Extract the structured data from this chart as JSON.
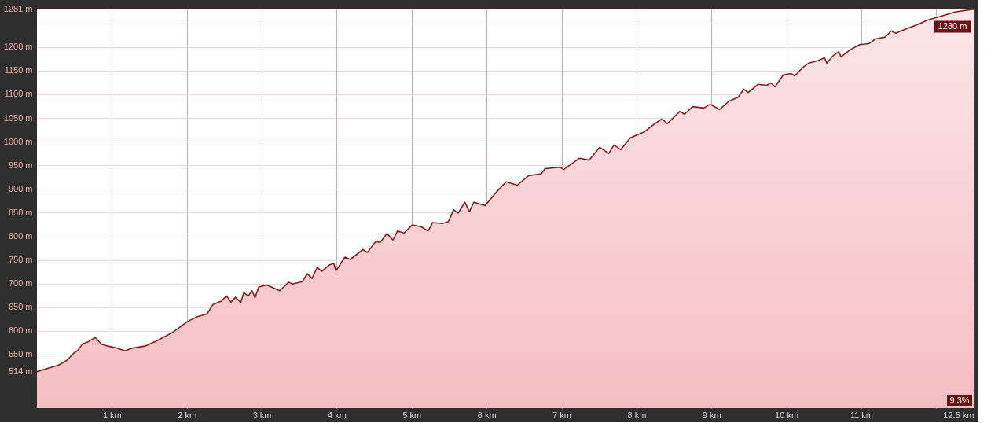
{
  "chart_data": {
    "type": "area",
    "grid": true,
    "x": [
      0.0,
      0.29,
      0.4,
      0.49,
      0.54,
      0.61,
      0.67,
      0.78,
      0.86,
      0.95,
      1.06,
      1.18,
      1.25,
      1.44,
      1.61,
      1.82,
      2.01,
      2.14,
      2.27,
      2.35,
      2.46,
      2.53,
      2.59,
      2.65,
      2.72,
      2.76,
      2.82,
      2.87,
      2.91,
      2.96,
      3.01,
      3.07,
      3.24,
      3.36,
      3.41,
      3.54,
      3.61,
      3.67,
      3.74,
      3.8,
      3.9,
      3.96,
      3.99,
      4.11,
      4.18,
      4.35,
      4.41,
      4.52,
      4.58,
      4.67,
      4.75,
      4.81,
      4.9,
      5.01,
      5.13,
      5.22,
      5.28,
      5.41,
      5.49,
      5.56,
      5.62,
      5.71,
      5.77,
      5.83,
      5.98,
      6.14,
      6.26,
      6.41,
      6.56,
      6.73,
      6.78,
      6.98,
      7.03,
      7.24,
      7.37,
      7.51,
      7.63,
      7.7,
      7.79,
      7.92,
      8.11,
      8.22,
      8.34,
      8.41,
      8.58,
      8.64,
      8.75,
      8.9,
      8.98,
      9.11,
      9.23,
      9.36,
      9.43,
      9.49,
      9.62,
      9.74,
      9.79,
      9.85,
      9.96,
      10.06,
      10.11,
      10.23,
      10.3,
      10.42,
      10.51,
      10.54,
      10.62,
      10.7,
      10.73,
      10.85,
      10.98,
      11.1,
      11.19,
      11.32,
      11.4,
      11.46,
      11.61,
      11.78,
      11.87,
      12.04,
      12.25,
      12.5
    ],
    "series": [
      {
        "color": "#8b1a1a",
        "values": [
          514,
          528,
          538,
          553,
          558,
          573,
          576,
          586,
          572,
          568,
          564,
          558,
          563,
          568,
          580,
          598,
          620,
          630,
          636,
          656,
          663,
          674,
          661,
          671,
          660,
          681,
          674,
          685,
          670,
          693,
          695,
          697,
          685,
          703,
          699,
          704,
          721,
          711,
          734,
          726,
          739,
          743,
          727,
          756,
          751,
          772,
          766,
          789,
          787,
          806,
          792,
          811,
          807,
          824,
          820,
          811,
          829,
          827,
          831,
          856,
          849,
          872,
          852,
          872,
          865,
          895,
          915,
          908,
          928,
          932,
          943,
          946,
          941,
          965,
          961,
          988,
          975,
          993,
          983,
          1008,
          1021,
          1035,
          1048,
          1038,
          1064,
          1058,
          1074,
          1071,
          1079,
          1068,
          1085,
          1094,
          1111,
          1104,
          1121,
          1119,
          1124,
          1116,
          1141,
          1144,
          1139,
          1158,
          1166,
          1171,
          1177,
          1166,
          1181,
          1190,
          1179,
          1194,
          1205,
          1207,
          1217,
          1221,
          1234,
          1229,
          1239,
          1249,
          1256,
          1264,
          1274,
          1280
        ]
      }
    ],
    "xlim": [
      0,
      12.5
    ],
    "xticks": [
      {
        "value": 1,
        "label": "1 km"
      },
      {
        "value": 2,
        "label": "2 km"
      },
      {
        "value": 3,
        "label": "3 km"
      },
      {
        "value": 4,
        "label": "4 km"
      },
      {
        "value": 5,
        "label": "5 km"
      },
      {
        "value": 6,
        "label": "6 km"
      },
      {
        "value": 7,
        "label": "7 km"
      },
      {
        "value": 8,
        "label": "8 km"
      },
      {
        "value": 9,
        "label": "9 km"
      },
      {
        "value": 10,
        "label": "10 km"
      },
      {
        "value": 11,
        "label": "11 km"
      },
      {
        "value": 12,
        "label": null
      },
      {
        "value": 12.5,
        "label": "12.5 km"
      }
    ],
    "ylim": [
      437,
      1281
    ],
    "yticks": [
      {
        "value": 514,
        "label": "514 m"
      },
      {
        "value": 550,
        "label": "550 m"
      },
      {
        "value": 600,
        "label": "600 m"
      },
      {
        "value": 650,
        "label": "650 m"
      },
      {
        "value": 700,
        "label": "700 m"
      },
      {
        "value": 750,
        "label": "750 m"
      },
      {
        "value": 800,
        "label": "800 m"
      },
      {
        "value": 850,
        "label": "850 m"
      },
      {
        "value": 900,
        "label": "900 m"
      },
      {
        "value": 950,
        "label": "950 m"
      },
      {
        "value": 1000,
        "label": "1000 m"
      },
      {
        "value": 1050,
        "label": "1050 m"
      },
      {
        "value": 1100,
        "label": "1100 m"
      },
      {
        "value": 1150,
        "label": "1150 m"
      },
      {
        "value": 1200,
        "label": "1200 m"
      },
      {
        "value": 1250,
        "label": null
      },
      {
        "value": 1281,
        "label": "1281 m"
      }
    ],
    "annotations": [
      {
        "text": "1280 m",
        "x": 12.5,
        "y": 1280
      },
      "9.3%"
    ]
  }
}
